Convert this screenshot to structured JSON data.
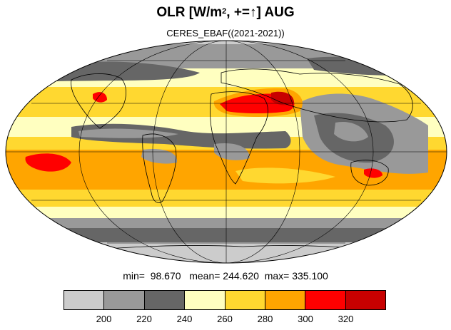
{
  "title": {
    "main": "OLR [W/m",
    "superscript": "2",
    "rest": ", +=↑] AUG"
  },
  "subtitle": "CERES_EBAF((2021-2021))",
  "stats": {
    "min_label": "min=",
    "min_value": "98.670",
    "mean_label": "mean=",
    "mean_value": "244.620",
    "max_label": "max=",
    "max_value": "335.100"
  },
  "colorbar": {
    "levels": [
      "200",
      "220",
      "240",
      "260",
      "280",
      "300",
      "320"
    ],
    "colors": [
      "#cccccc",
      "#999999",
      "#666666",
      "#ffffc0",
      "#ffd830",
      "#ffa500",
      "#ff0000",
      "#c80000"
    ]
  },
  "map": {
    "projection": "Mollweide",
    "parallels_deg": [
      -60,
      -30,
      0,
      30,
      60
    ],
    "meridians_deg": [
      -180,
      -120,
      -60,
      0,
      60,
      120,
      180
    ]
  }
}
